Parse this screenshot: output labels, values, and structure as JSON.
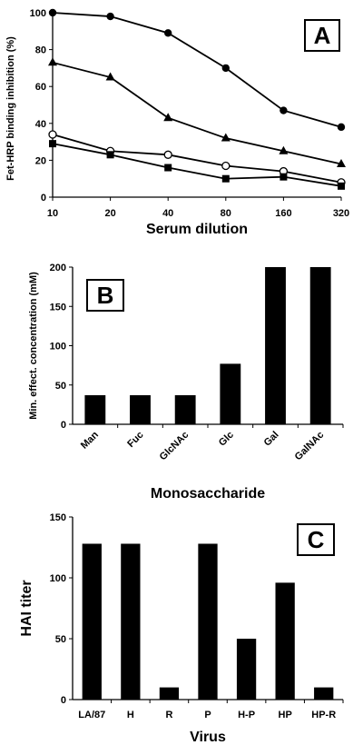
{
  "chart_data": [
    {
      "type": "line",
      "panel_label": "A",
      "xlabel": "Serum dilution",
      "ylabel": "Fet-HRP binding inhibition (%)",
      "x": [
        10,
        20,
        40,
        80,
        160,
        320
      ],
      "x_scale": "log2",
      "x_tick_labels": [
        "10",
        "20",
        "40",
        "80",
        "160",
        "320"
      ],
      "ylim": [
        0,
        100
      ],
      "y_ticks": [
        0,
        20,
        40,
        60,
        80,
        100
      ],
      "grid": false,
      "series": [
        {
          "marker": "filled-circle",
          "values": [
            100,
            98,
            89,
            70,
            47,
            38
          ]
        },
        {
          "marker": "filled-triangle",
          "values": [
            73,
            65,
            43,
            32,
            25,
            18
          ]
        },
        {
          "marker": "open-circle",
          "values": [
            34,
            25,
            23,
            17,
            14,
            8
          ]
        },
        {
          "marker": "filled-square",
          "values": [
            29,
            23,
            16,
            10,
            11,
            6
          ]
        }
      ]
    },
    {
      "type": "bar",
      "panel_label": "B",
      "xlabel": "Monosaccharide",
      "ylabel": "Min. effect. concentration (mM)",
      "categories": [
        "Man",
        "Fuc",
        "GlcNAc",
        "Glc",
        "Gal",
        "GalNAc"
      ],
      "values": [
        37,
        37,
        37,
        77,
        200,
        200
      ],
      "ylim": [
        0,
        200
      ],
      "y_ticks": [
        0,
        50,
        100,
        150,
        200
      ],
      "grid": false,
      "bar_color": "#000000"
    },
    {
      "type": "bar",
      "panel_label": "C",
      "xlabel": "Virus",
      "ylabel": "HAI titer",
      "categories": [
        "LA/87",
        "H",
        "R",
        "P",
        "H-P",
        "HP",
        "HP-R"
      ],
      "values": [
        128,
        128,
        10,
        128,
        50,
        96,
        10
      ],
      "ylim": [
        0,
        150
      ],
      "y_ticks": [
        0,
        50,
        100,
        150
      ],
      "grid": false,
      "bar_color": "#000000"
    }
  ]
}
